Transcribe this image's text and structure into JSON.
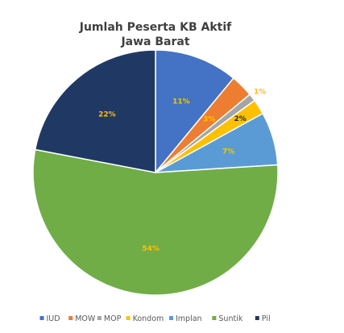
{
  "chart_data": {
    "type": "pie",
    "title": "Jumlah Peserta KB Aktif",
    "subtitle": "Jawa Barat",
    "legend_position": "bottom",
    "slices": [
      {
        "name": "IUD",
        "value": 11,
        "label": "11%",
        "color": "#4472C4",
        "label_color": "#FFC000"
      },
      {
        "name": "MOW",
        "value": 3,
        "label": "3%",
        "color": "#ED7D31",
        "label_color": "#FFC000"
      },
      {
        "name": "MOP",
        "value": 1,
        "label": "1%",
        "color": "#A5A5A5",
        "label_color": "#FFC000"
      },
      {
        "name": "Kondom",
        "value": 2,
        "label": "2%",
        "color": "#FFC000",
        "label_color": "#1F2A44"
      },
      {
        "name": "Implan",
        "value": 7,
        "label": "7%",
        "color": "#5B9BD5",
        "label_color": "#FFC000"
      },
      {
        "name": "Suntik",
        "value": 54,
        "label": "54%",
        "color": "#70AD47",
        "label_color": "#FFC000"
      },
      {
        "name": "Pil",
        "value": 22,
        "label": "22%",
        "color": "#203864",
        "label_color": "#FFC000"
      }
    ]
  }
}
